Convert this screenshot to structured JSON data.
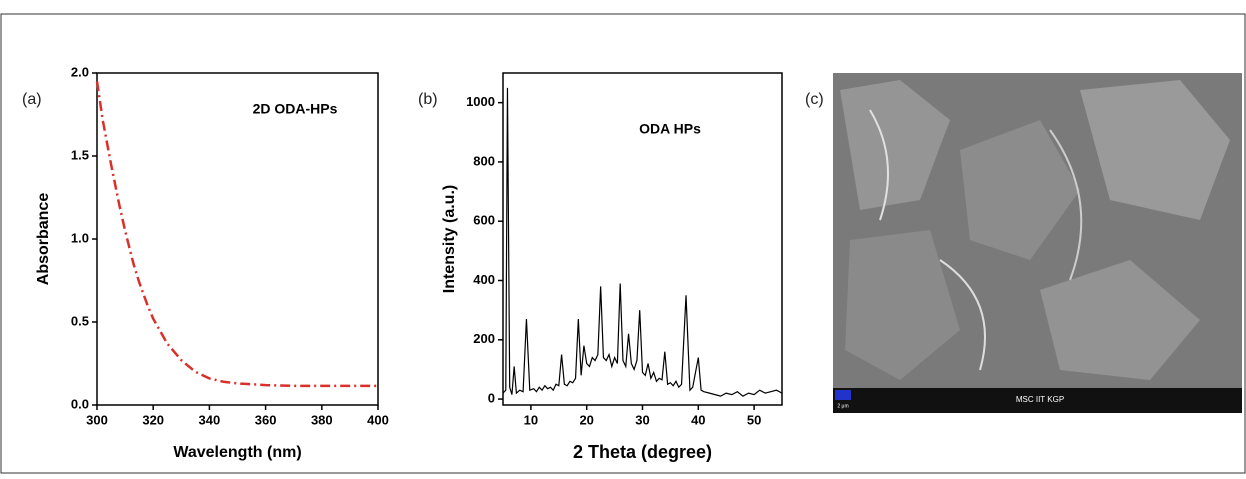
{
  "chart_data": [
    {
      "type": "line",
      "panel_label": "(a)",
      "annotation": "2D ODA-HPs",
      "x_label": "Wavelength (nm)",
      "y_label": "Absorbance",
      "x": [
        300,
        302,
        305,
        308,
        310,
        313,
        315,
        318,
        320,
        325,
        330,
        335,
        340,
        345,
        350,
        360,
        370,
        380,
        390,
        400
      ],
      "series": [
        {
          "color": "#d9302b",
          "values": [
            1.95,
            1.72,
            1.45,
            1.2,
            1.05,
            0.85,
            0.74,
            0.6,
            0.52,
            0.37,
            0.27,
            0.2,
            0.16,
            0.14,
            0.13,
            0.12,
            0.115,
            0.115,
            0.115,
            0.115
          ]
        }
      ],
      "line_style": "dash-dot",
      "xlim": [
        300,
        400
      ],
      "xticks": [
        300,
        320,
        340,
        360,
        380,
        400
      ],
      "ylim": [
        0,
        2
      ],
      "yticks": [
        {
          "value": 0,
          "label": "0.0"
        },
        0.5,
        {
          "value": 1,
          "label": "1.0"
        },
        1.5,
        {
          "value": 2,
          "label": "2.0"
        }
      ]
    },
    {
      "type": "line",
      "panel_label": "(b)",
      "annotation": "ODA HPs",
      "x_label": "2 Theta (degree)",
      "y_label": "Intensity (a.u.)",
      "x": [
        5,
        5.5,
        5.8,
        6.2,
        6.6,
        7,
        7.4,
        8,
        8.6,
        9.2,
        9.8,
        10.5,
        11,
        11.5,
        12,
        12.5,
        13,
        13.5,
        14,
        14.5,
        15,
        15.5,
        16,
        16.5,
        17,
        17.5,
        18,
        18.5,
        19,
        19.5,
        20,
        20.5,
        21,
        21.5,
        22,
        22.5,
        23,
        23.5,
        24,
        24.5,
        25,
        25.5,
        26,
        26.5,
        27,
        27.5,
        28,
        28.5,
        29,
        29.5,
        30,
        30.5,
        31,
        31.5,
        32,
        32.5,
        33,
        33.5,
        34,
        34.5,
        35,
        35.5,
        36,
        36.5,
        37,
        37.8,
        38.5,
        39,
        40,
        40.5,
        41,
        42,
        43,
        44,
        45,
        46,
        47,
        48,
        49,
        50,
        51,
        52,
        53,
        54,
        55
      ],
      "series": [
        {
          "color": "#000000",
          "values": [
            20,
            30,
            1050,
            40,
            15,
            110,
            20,
            30,
            25,
            270,
            30,
            35,
            25,
            40,
            30,
            45,
            35,
            40,
            30,
            50,
            45,
            150,
            50,
            45,
            60,
            55,
            70,
            270,
            80,
            180,
            120,
            110,
            140,
            130,
            150,
            380,
            140,
            130,
            150,
            110,
            140,
            120,
            390,
            130,
            110,
            220,
            120,
            100,
            130,
            300,
            90,
            80,
            120,
            70,
            90,
            60,
            70,
            65,
            160,
            50,
            55,
            45,
            60,
            40,
            50,
            350,
            30,
            40,
            140,
            30,
            25,
            20,
            15,
            10,
            20,
            15,
            25,
            10,
            20,
            15,
            30,
            20,
            25,
            30,
            20
          ]
        }
      ],
      "line_style": "solid",
      "xlim": [
        5,
        55
      ],
      "xticks": [
        10,
        20,
        30,
        40,
        50
      ],
      "ylim": [
        -20,
        1100
      ],
      "yticks": [
        0,
        200,
        400,
        600,
        800,
        1000
      ]
    }
  ],
  "image_panel": {
    "panel_label": "(c)",
    "scale_bar": "2 μm",
    "footer_text": "MSC IIT KGP"
  }
}
